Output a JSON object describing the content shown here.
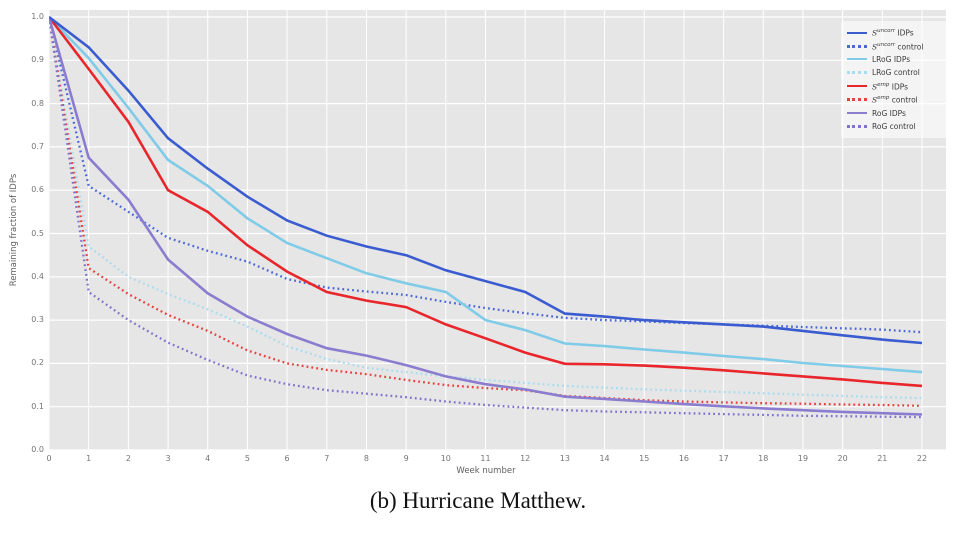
{
  "figure": {
    "caption": "(b) Hurricane Matthew."
  },
  "chart_data": {
    "type": "line",
    "title": "",
    "xlabel": "Week number",
    "ylabel": "Remaining fraction of IDPs",
    "xlim": [
      0,
      22
    ],
    "ylim": [
      0.0,
      1.0
    ],
    "grid": true,
    "plot_background": "#e6e6e6",
    "gridline_color": "#ffffff",
    "legend_position": "upper right",
    "x_ticks": [
      0,
      1,
      2,
      3,
      4,
      5,
      6,
      7,
      8,
      9,
      10,
      11,
      12,
      13,
      14,
      15,
      16,
      17,
      18,
      19,
      20,
      21,
      22
    ],
    "y_ticks": [
      0.0,
      0.1,
      0.2,
      0.3,
      0.4,
      0.5,
      0.6,
      0.7,
      0.8,
      0.9,
      1.0
    ],
    "x": [
      0,
      1,
      2,
      3,
      4,
      5,
      6,
      7,
      8,
      9,
      10,
      11,
      12,
      13,
      14,
      15,
      16,
      17,
      18,
      19,
      20,
      21,
      22
    ],
    "series": [
      {
        "name": "S^uncorr IDPs",
        "legend": {
          "base": "S",
          "base_italic": true,
          "sup": "uncorr",
          "rest": " IDPs"
        },
        "style": "solid",
        "color": "#3a5cd0",
        "values": [
          1.0,
          0.93,
          0.83,
          0.72,
          0.65,
          0.585,
          0.53,
          0.495,
          0.47,
          0.45,
          0.415,
          0.39,
          0.365,
          0.315,
          0.308,
          0.3,
          0.295,
          0.29,
          0.285,
          0.275,
          0.265,
          0.255,
          0.247
        ]
      },
      {
        "name": "S^uncorr control",
        "legend": {
          "base": "S",
          "base_italic": true,
          "sup": "uncorr",
          "rest": " control"
        },
        "style": "dotted",
        "color": "#4b68d8",
        "values": [
          1.0,
          0.61,
          0.55,
          0.49,
          0.46,
          0.435,
          0.395,
          0.375,
          0.366,
          0.358,
          0.342,
          0.328,
          0.316,
          0.305,
          0.3,
          0.297,
          0.293,
          0.29,
          0.287,
          0.284,
          0.281,
          0.278,
          0.272
        ]
      },
      {
        "name": "LRoG IDPs",
        "legend": {
          "base": "LRoG",
          "base_italic": false,
          "sup": "",
          "rest": " IDPs"
        },
        "style": "solid",
        "color": "#7fcbe8",
        "values": [
          1.0,
          0.905,
          0.79,
          0.67,
          0.61,
          0.535,
          0.478,
          0.443,
          0.408,
          0.385,
          0.365,
          0.3,
          0.277,
          0.246,
          0.24,
          0.232,
          0.225,
          0.217,
          0.21,
          0.201,
          0.194,
          0.187,
          0.18
        ]
      },
      {
        "name": "LRoG control",
        "legend": {
          "base": "LRoG",
          "base_italic": false,
          "sup": "",
          "rest": " control"
        },
        "style": "dotted",
        "color": "#a8dcf0",
        "values": [
          1.0,
          0.47,
          0.4,
          0.36,
          0.325,
          0.285,
          0.24,
          0.21,
          0.19,
          0.18,
          0.17,
          0.162,
          0.155,
          0.148,
          0.144,
          0.14,
          0.137,
          0.134,
          0.131,
          0.128,
          0.125,
          0.122,
          0.12
        ]
      },
      {
        "name": "S^emp IDPs",
        "legend": {
          "base": "S",
          "base_italic": true,
          "sup": "emp",
          "rest": " IDPs"
        },
        "style": "solid",
        "color": "#e8262b",
        "values": [
          1.0,
          0.88,
          0.758,
          0.6,
          0.55,
          0.473,
          0.412,
          0.365,
          0.345,
          0.33,
          0.29,
          0.258,
          0.225,
          0.199,
          0.198,
          0.195,
          0.19,
          0.184,
          0.177,
          0.17,
          0.163,
          0.155,
          0.148
        ]
      },
      {
        "name": "S^emp control",
        "legend": {
          "base": "S",
          "base_italic": true,
          "sup": "emp",
          "rest": " control"
        },
        "style": "dotted",
        "color": "#e6413c",
        "values": [
          1.0,
          0.42,
          0.36,
          0.312,
          0.275,
          0.23,
          0.2,
          0.185,
          0.175,
          0.162,
          0.15,
          0.143,
          0.138,
          0.125,
          0.12,
          0.115,
          0.112,
          0.11,
          0.108,
          0.107,
          0.105,
          0.104,
          0.102
        ]
      },
      {
        "name": "RoG IDPs",
        "legend": {
          "base": "RoG",
          "base_italic": false,
          "sup": "",
          "rest": " IDPs"
        },
        "style": "solid",
        "color": "#8b7ccf",
        "values": [
          1.0,
          0.675,
          0.578,
          0.44,
          0.362,
          0.308,
          0.268,
          0.235,
          0.218,
          0.196,
          0.17,
          0.152,
          0.14,
          0.123,
          0.118,
          0.112,
          0.106,
          0.101,
          0.096,
          0.092,
          0.088,
          0.085,
          0.082
        ]
      },
      {
        "name": "RoG control",
        "legend": {
          "base": "RoG",
          "base_italic": false,
          "sup": "",
          "rest": " control"
        },
        "style": "dotted",
        "color": "#7f74cd",
        "values": [
          1.0,
          0.365,
          0.3,
          0.248,
          0.208,
          0.172,
          0.152,
          0.138,
          0.13,
          0.122,
          0.112,
          0.104,
          0.098,
          0.092,
          0.089,
          0.087,
          0.085,
          0.083,
          0.081,
          0.079,
          0.078,
          0.077,
          0.076
        ]
      }
    ]
  }
}
